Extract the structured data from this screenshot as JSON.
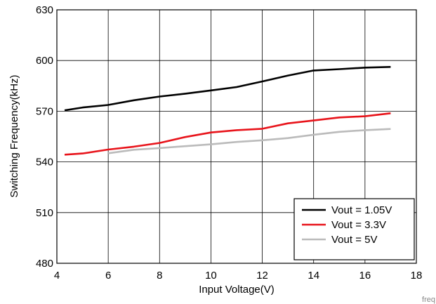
{
  "chart_data": {
    "type": "line",
    "xlabel": "Input Voltage(V)",
    "ylabel": "Switching Frequency(kHz)",
    "xlim": [
      4,
      18
    ],
    "ylim": [
      480,
      630
    ],
    "xticks": [
      4,
      6,
      8,
      10,
      12,
      14,
      16,
      18
    ],
    "yticks": [
      480,
      510,
      540,
      570,
      600,
      630
    ],
    "grid": true,
    "legend_position": "bottom-right",
    "series": [
      {
        "name": "Vout = 1.05V",
        "color": "#000000",
        "x": [
          4.3,
          5,
          6,
          7,
          8,
          9,
          10,
          11,
          12,
          13,
          14,
          15,
          16,
          17
        ],
        "y": [
          570.5,
          572.2,
          573.7,
          576.5,
          578.7,
          580.4,
          582.3,
          584.3,
          587.6,
          591.1,
          594.1,
          594.9,
          595.8,
          596.2
        ]
      },
      {
        "name": "Vout = 3.3V",
        "color": "#e8141b",
        "x": [
          4.3,
          5,
          6,
          7,
          8,
          9,
          10,
          11,
          12,
          13,
          14,
          15,
          16,
          17
        ],
        "y": [
          544.3,
          545.0,
          547.3,
          549.0,
          551.2,
          554.7,
          557.4,
          558.8,
          559.6,
          562.8,
          564.5,
          566.3,
          567.0,
          568.8
        ]
      },
      {
        "name": "Vout = 5V",
        "color": "#bbbbbb",
        "x": [
          6,
          7,
          8,
          9,
          10,
          11,
          12,
          13,
          14,
          15,
          16,
          17
        ],
        "y": [
          545.1,
          547.2,
          548.2,
          549.3,
          550.4,
          551.8,
          552.8,
          554.1,
          556.1,
          557.8,
          558.8,
          559.5
        ]
      }
    ]
  },
  "watermark": "freq"
}
